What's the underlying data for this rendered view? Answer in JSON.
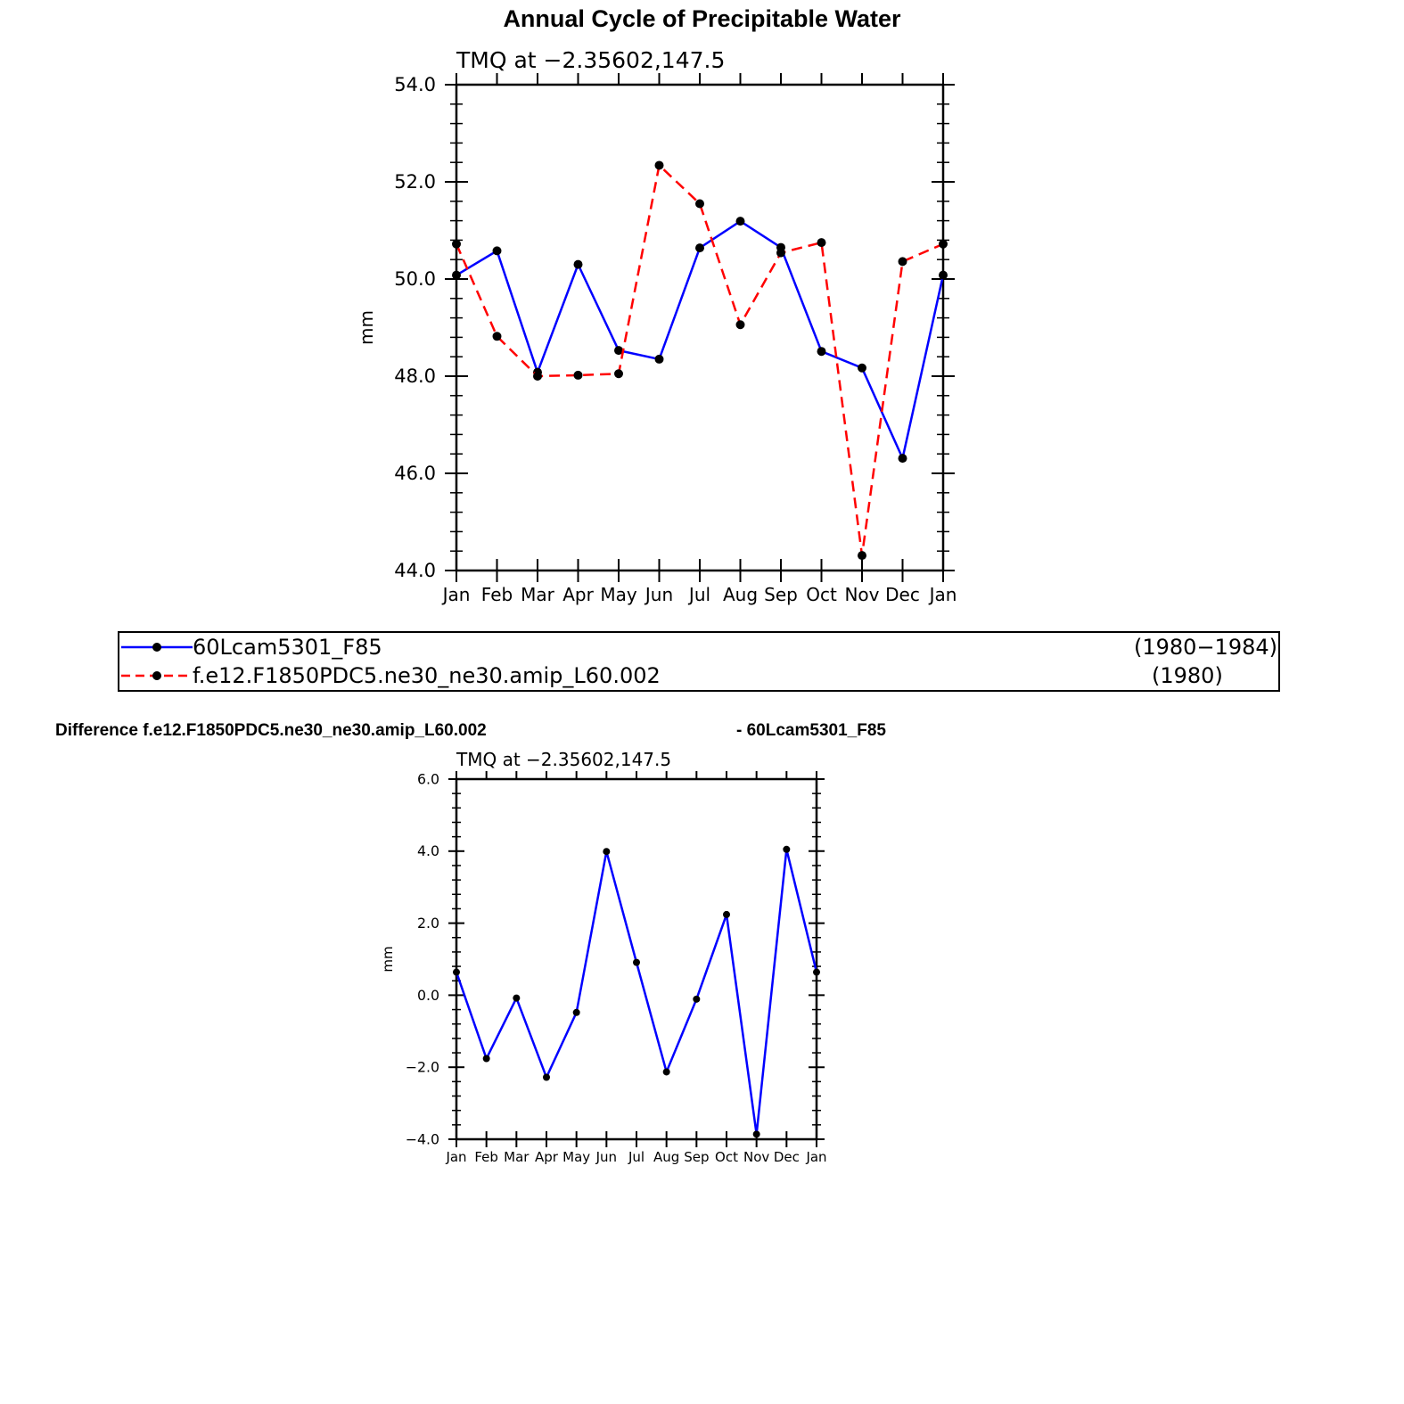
{
  "title": "Annual Cycle of Precipitable Water",
  "difference_title": {
    "left": "Difference f.e12.F1850PDC5.ne30_ne30.amip_L60.002",
    "right": "- 60Lcam5301_F85"
  },
  "legend": {
    "entries": [
      {
        "label": "60Lcam5301_F85",
        "period": "(1980−1984)",
        "color": "#0000ff",
        "dash": "solid"
      },
      {
        "label": "f.e12.F1850PDC5.ne30_ne30.amip_L60.002",
        "period": "(1980)",
        "color": "#ff0000",
        "dash": "dashed"
      }
    ]
  },
  "chart_data": [
    {
      "type": "line",
      "subtitle": "TMQ  at  −2.35602,147.5",
      "ylabel": "mm",
      "xlabel": "",
      "categories": [
        "Jan",
        "Feb",
        "Mar",
        "Apr",
        "May",
        "Jun",
        "Jul",
        "Aug",
        "Sep",
        "Oct",
        "Nov",
        "Dec",
        "Jan"
      ],
      "ylim": [
        44.0,
        54.0
      ],
      "yticks": [
        "44.0",
        "46.0",
        "48.0",
        "50.0",
        "52.0",
        "54.0"
      ],
      "grid": false,
      "series": [
        {
          "name": "60Lcam5301_F85",
          "color": "#0000ff",
          "dash": "solid",
          "values": [
            50.08,
            50.58,
            48.08,
            50.3,
            48.53,
            48.35,
            50.64,
            51.19,
            50.65,
            48.51,
            48.17,
            46.31,
            50.08
          ]
        },
        {
          "name": "f.e12.F1850PDC5.ne30_ne30.amip_L60.002",
          "color": "#ff0000",
          "dash": "dashed",
          "values": [
            50.72,
            48.82,
            48.0,
            48.02,
            48.05,
            52.34,
            51.55,
            49.06,
            50.54,
            50.75,
            44.31,
            50.36,
            50.72
          ]
        }
      ]
    },
    {
      "type": "line",
      "subtitle": "TMQ  at  −2.35602,147.5",
      "ylabel": "mm",
      "xlabel": "",
      "categories": [
        "Jan",
        "Feb",
        "Mar",
        "Apr",
        "May",
        "Jun",
        "Jul",
        "Aug",
        "Sep",
        "Oct",
        "Nov",
        "Dec",
        "Jan"
      ],
      "ylim": [
        -4.0,
        6.0
      ],
      "yticks": [
        "−4.0",
        "−2.0",
        "0.0",
        "2.0",
        "4.0",
        "6.0"
      ],
      "grid": false,
      "series": [
        {
          "color": "#0000ff",
          "dash": "solid",
          "values": [
            0.64,
            -1.76,
            -0.08,
            -2.28,
            -0.48,
            3.99,
            0.91,
            -2.13,
            -0.11,
            2.24,
            -3.86,
            4.05,
            0.64
          ]
        }
      ]
    }
  ]
}
